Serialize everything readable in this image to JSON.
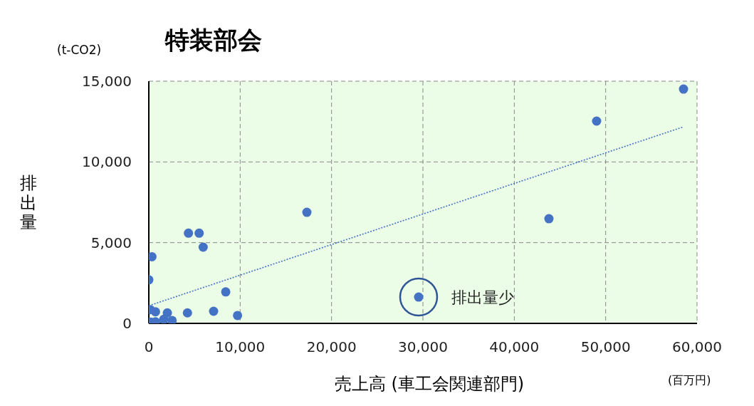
{
  "chart_data": {
    "type": "scatter",
    "title": "特装部会",
    "xlabel": "売上高 (車工会関連部門)",
    "ylabel": "排出量",
    "annotations": [
      "(t-CO2)",
      "(百万円)",
      {
        "text": "排出量少",
        "x": 29530,
        "y": 1630
      }
    ],
    "marker": "circle",
    "grid": true,
    "xlim": [
      0,
      60000
    ],
    "xticks": [
      0,
      {
        "value": 10000,
        "label": "10,000"
      },
      {
        "value": 20000,
        "label": "20,000"
      },
      {
        "value": 30000,
        "label": "30,000"
      },
      {
        "value": 40000,
        "label": "40,000"
      },
      {
        "value": 50000,
        "label": "50,000"
      },
      {
        "value": 60000,
        "label": "60,000"
      }
    ],
    "ylim": [
      0,
      15000
    ],
    "yticks": [
      0,
      {
        "value": 5000,
        "label": "5,000"
      },
      {
        "value": 10000,
        "label": "10,000"
      },
      {
        "value": 15000,
        "label": "15,000"
      }
    ],
    "series": [
      {
        "color": "#4472c4",
        "x": [
          0,
          340,
          4340,
          5510,
          5950,
          8420,
          160,
          730,
          2030,
          4230,
          7090,
          9710,
          210,
          730,
          1640,
          2550,
          17300,
          29530,
          43790,
          49010,
          58520
        ],
        "values": [
          2700,
          4130,
          5590,
          5590,
          4720,
          1950,
          850,
          720,
          650,
          650,
          750,
          490,
          80,
          100,
          250,
          180,
          6880,
          1630,
          6480,
          12530,
          14510
        ]
      },
      {
        "type": "line",
        "color": "#4472c4",
        "line_style": "dotted",
        "marker": "none",
        "x": [
          300,
          58500
        ],
        "values": [
          1150,
          12170
        ]
      }
    ]
  }
}
